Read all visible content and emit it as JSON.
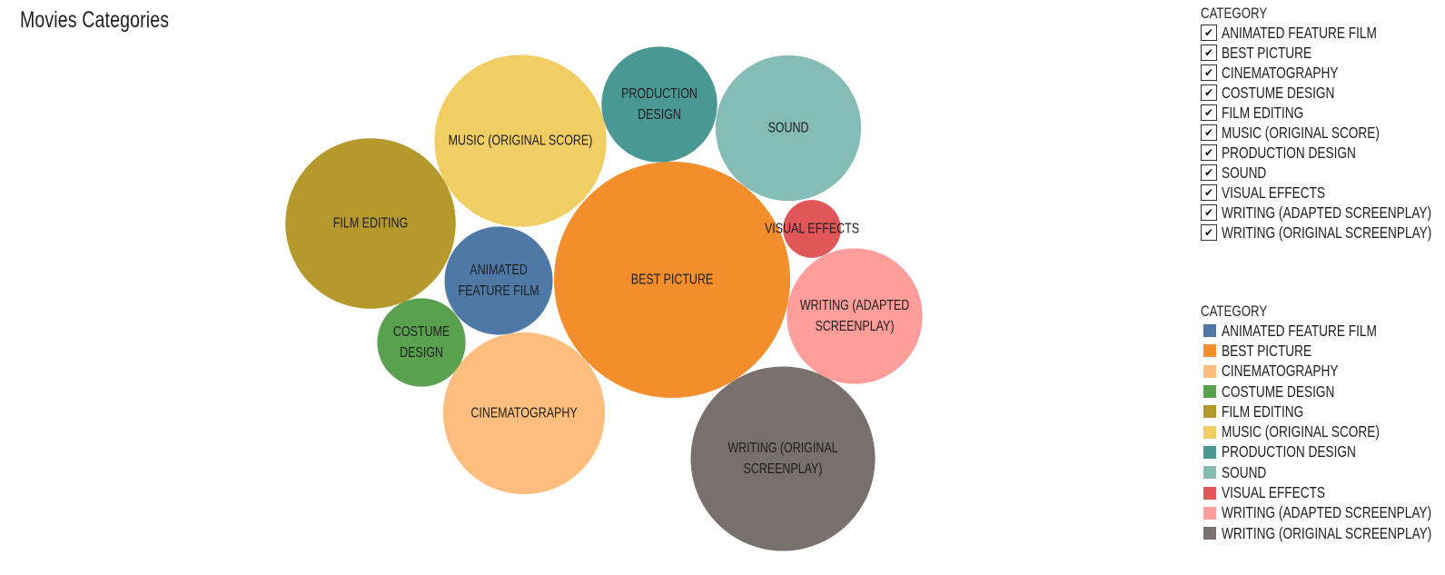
{
  "page": {
    "title": "Movies Categories"
  },
  "filter": {
    "header": "CATEGORY",
    "items": [
      {
        "label": "ANIMATED FEATURE FILM",
        "checked": true
      },
      {
        "label": "BEST PICTURE",
        "checked": true
      },
      {
        "label": "CINEMATOGRAPHY",
        "checked": true
      },
      {
        "label": "COSTUME DESIGN",
        "checked": true
      },
      {
        "label": "FILM EDITING",
        "checked": true
      },
      {
        "label": "MUSIC (ORIGINAL SCORE)",
        "checked": true
      },
      {
        "label": "PRODUCTION DESIGN",
        "checked": true
      },
      {
        "label": "SOUND",
        "checked": true
      },
      {
        "label": "VISUAL EFFECTS",
        "checked": true
      },
      {
        "label": "WRITING (ADAPTED SCREENPLAY)",
        "checked": true
      },
      {
        "label": "WRITING (ORIGINAL SCREENPLAY)",
        "checked": true
      }
    ]
  },
  "legend": {
    "header": "CATEGORY",
    "items": [
      {
        "label": "ANIMATED FEATURE FILM",
        "color": "#4e79a7"
      },
      {
        "label": "BEST PICTURE",
        "color": "#f28e2b"
      },
      {
        "label": "CINEMATOGRAPHY",
        "color": "#ffbe7d"
      },
      {
        "label": "COSTUME DESIGN",
        "color": "#59a14f"
      },
      {
        "label": "FILM EDITING",
        "color": "#b6992d"
      },
      {
        "label": "MUSIC (ORIGINAL SCORE)",
        "color": "#f1ce63"
      },
      {
        "label": "PRODUCTION DESIGN",
        "color": "#499894"
      },
      {
        "label": "SOUND",
        "color": "#86bcb6"
      },
      {
        "label": "VISUAL EFFECTS",
        "color": "#e15759"
      },
      {
        "label": "WRITING (ADAPTED SCREENPLAY)",
        "color": "#ff9d9a"
      },
      {
        "label": "WRITING (ORIGINAL SCREENPLAY)",
        "color": "#79706e"
      }
    ]
  },
  "chart_data": {
    "type": "bubble",
    "series": [
      {
        "name": "BEST PICTURE",
        "size_relative": 1.0,
        "label_lines": [
          "BEST PICTURE"
        ],
        "color": "#f28e2b"
      },
      {
        "name": "WRITING (ORIGINAL SCREENPLAY)",
        "size_relative": 0.61,
        "label_lines": [
          "WRITING (ORIGINAL",
          "SCREENPLAY)"
        ],
        "color": "#79706e"
      },
      {
        "name": "FILM EDITING",
        "size_relative": 0.52,
        "label_lines": [
          "FILM EDITING"
        ],
        "color": "#b6992d"
      },
      {
        "name": "MUSIC (ORIGINAL SCORE)",
        "size_relative": 0.53,
        "label_lines": [
          "MUSIC (ORIGINAL SCORE)"
        ],
        "color": "#f1ce63"
      },
      {
        "name": "CINEMATOGRAPHY",
        "size_relative": 0.47,
        "label_lines": [
          "CINEMATOGRAPHY"
        ],
        "color": "#ffbe7d"
      },
      {
        "name": "SOUND",
        "size_relative": 0.38,
        "label_lines": [
          "SOUND"
        ],
        "color": "#86bcb6"
      },
      {
        "name": "WRITING (ADAPTED SCREENPLAY)",
        "size_relative": 0.33,
        "label_lines": [
          "WRITING (ADAPTED",
          "SCREENPLAY)"
        ],
        "color": "#ff9d9a"
      },
      {
        "name": "ANIMATED FEATURE FILM",
        "size_relative": 0.21,
        "label_lines": [
          "ANIMATED",
          "FEATURE FILM"
        ],
        "color": "#4e79a7"
      },
      {
        "name": "PRODUCTION DESIGN",
        "size_relative": 0.24,
        "label_lines": [
          "PRODUCTION",
          "DESIGN"
        ],
        "color": "#499894"
      },
      {
        "name": "COSTUME DESIGN",
        "size_relative": 0.14,
        "label_lines": [
          "COSTUME",
          "DESIGN"
        ],
        "color": "#59a14f"
      },
      {
        "name": "VISUAL EFFECTS",
        "size_relative": 0.06,
        "label_lines": [
          "VISUAL EFFECTS"
        ],
        "color": "#e15759"
      }
    ]
  }
}
